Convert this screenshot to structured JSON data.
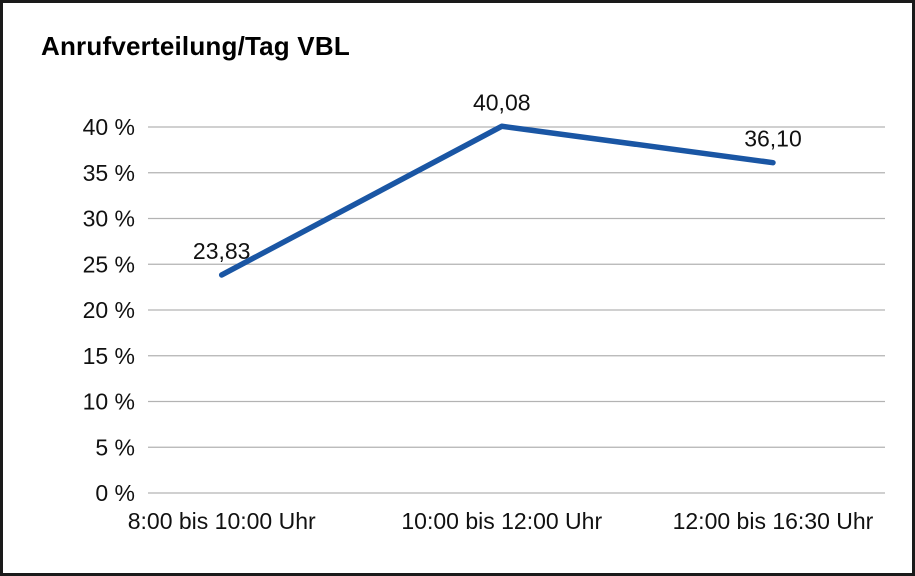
{
  "chart": {
    "title": "Anrufverteilung/Tag VBL"
  },
  "chart_data": {
    "type": "line",
    "title": "Anrufverteilung/Tag VBL",
    "categories": [
      "8:00 bis 10:00 Uhr",
      "10:00 bis 12:00 Uhr",
      "12:00 bis 16:30 Uhr"
    ],
    "values": [
      23.83,
      40.08,
      36.1
    ],
    "data_labels": [
      "23,83",
      "40,08",
      "36,10"
    ],
    "xlabel": "",
    "ylabel": "",
    "ylim": [
      0,
      40
    ],
    "ytick_step": 5,
    "ytick_labels": [
      "0 %",
      "5 %",
      "10 %",
      "15 %",
      "20 %",
      "25 %",
      "30 %",
      "35 %",
      "40 %"
    ],
    "grid": true,
    "legend": false,
    "line_color": "#1a56a4",
    "grid_color": "#b3b3b3"
  }
}
